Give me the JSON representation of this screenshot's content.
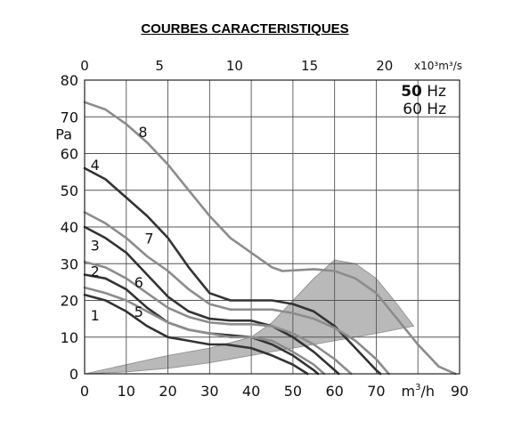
{
  "title": "COURBES CARACTERISTIQUES",
  "chart_data": {
    "type": "line",
    "title": "COURBES CARACTERISTIQUES",
    "ylabel": "Pa",
    "xlabel": "m³/h",
    "x_unit_parts": [
      "m",
      "3",
      "/h"
    ],
    "top_axis_label": "x10³m³/s",
    "top_axis_ticks": [
      "0",
      "5",
      "10",
      "15",
      "20"
    ],
    "top_axis_values": [
      0,
      5,
      10,
      15,
      20
    ],
    "top_axis_max": 25,
    "xlim": [
      0,
      90
    ],
    "ylim": [
      0,
      80
    ],
    "x_ticks": [
      0,
      10,
      20,
      30,
      40,
      50,
      60,
      70,
      80,
      90
    ],
    "y_ticks": [
      0,
      10,
      20,
      30,
      40,
      50,
      60,
      70,
      80
    ],
    "x_tick_labels": [
      "0",
      "10",
      "20",
      "30",
      "40",
      "50",
      "60",
      "70",
      "",
      "90"
    ],
    "y_tick_labels": [
      "0",
      "10",
      "20",
      "30",
      "40",
      "50",
      "60",
      "70",
      "80"
    ],
    "grid": true,
    "legend_lines": [
      "50 Hz",
      "60 Hz"
    ],
    "legend_bold_part": "50",
    "legend_placement": "top-right",
    "colors": {
      "fifty_hz": "#333333",
      "sixty_hz": "#8c8c8c",
      "area": "#b9b9b9",
      "grid": "#555555"
    },
    "series": [
      {
        "name": "1",
        "label_at": [
          2.5,
          16
        ],
        "points": [
          [
            0,
            21.5
          ],
          [
            5,
            20
          ],
          [
            10,
            17
          ],
          [
            15,
            13
          ],
          [
            20,
            10
          ],
          [
            25,
            9
          ],
          [
            30,
            8
          ],
          [
            34,
            8
          ],
          [
            40,
            7
          ],
          [
            45,
            5
          ],
          [
            50,
            2.5
          ],
          [
            53.5,
            0
          ]
        ],
        "freq": "50 Hz"
      },
      {
        "name": "2",
        "label_at": [
          2.5,
          28
        ],
        "points": [
          [
            0,
            27
          ],
          [
            5,
            26
          ],
          [
            10,
            23
          ],
          [
            15,
            18
          ],
          [
            20,
            14
          ],
          [
            25,
            12
          ],
          [
            30,
            11
          ],
          [
            35,
            10.5
          ],
          [
            40,
            10
          ],
          [
            45,
            8
          ],
          [
            50,
            5
          ],
          [
            55,
            1
          ],
          [
            56,
            0
          ]
        ],
        "freq": "50 Hz"
      },
      {
        "name": "3",
        "label_at": [
          2.5,
          35
        ],
        "points": [
          [
            0,
            40
          ],
          [
            5,
            37
          ],
          [
            10,
            33
          ],
          [
            15,
            27
          ],
          [
            20,
            21
          ],
          [
            25,
            17
          ],
          [
            30,
            15
          ],
          [
            35,
            14.5
          ],
          [
            40,
            14.5
          ],
          [
            45,
            13
          ],
          [
            50,
            10
          ],
          [
            55,
            6
          ],
          [
            60,
            1
          ],
          [
            61,
            0
          ]
        ],
        "freq": "50 Hz"
      },
      {
        "name": "4",
        "label_at": [
          2.5,
          57
        ],
        "points": [
          [
            0,
            56
          ],
          [
            5,
            53
          ],
          [
            10,
            48
          ],
          [
            15,
            43
          ],
          [
            20,
            37
          ],
          [
            25,
            29
          ],
          [
            30,
            22
          ],
          [
            35,
            20
          ],
          [
            40,
            20
          ],
          [
            45,
            20
          ],
          [
            50,
            19
          ],
          [
            55,
            17
          ],
          [
            60,
            13
          ],
          [
            65,
            7
          ],
          [
            70,
            1
          ],
          [
            71,
            0
          ]
        ],
        "freq": "50 Hz"
      },
      {
        "name": "5",
        "label_at": [
          13,
          17
        ],
        "points": [
          [
            0,
            23.5
          ],
          [
            5,
            22
          ],
          [
            10,
            20
          ],
          [
            15,
            17
          ],
          [
            20,
            14
          ],
          [
            25,
            12
          ],
          [
            30,
            11
          ],
          [
            35,
            10
          ],
          [
            40,
            10
          ],
          [
            45,
            9
          ],
          [
            50,
            6
          ],
          [
            55,
            2.5
          ],
          [
            57.5,
            0
          ]
        ],
        "freq": "60 Hz"
      },
      {
        "name": "6",
        "label_at": [
          13,
          25
        ],
        "points": [
          [
            0,
            30.5
          ],
          [
            5,
            29
          ],
          [
            10,
            26
          ],
          [
            15,
            22
          ],
          [
            20,
            18
          ],
          [
            25,
            15.5
          ],
          [
            30,
            14
          ],
          [
            35,
            13.5
          ],
          [
            40,
            13.5
          ],
          [
            45,
            13
          ],
          [
            50,
            11
          ],
          [
            55,
            8
          ],
          [
            60,
            4
          ],
          [
            64,
            0
          ]
        ],
        "freq": "60 Hz"
      },
      {
        "name": "7",
        "label_at": [
          15.5,
          37
        ],
        "points": [
          [
            0,
            44
          ],
          [
            5,
            41
          ],
          [
            10,
            37
          ],
          [
            15,
            32
          ],
          [
            20,
            28
          ],
          [
            25,
            23
          ],
          [
            30,
            19
          ],
          [
            35,
            17.5
          ],
          [
            40,
            17.5
          ],
          [
            45,
            17.5
          ],
          [
            50,
            16.5
          ],
          [
            55,
            15
          ],
          [
            60,
            12.5
          ],
          [
            65,
            9
          ],
          [
            70,
            4
          ],
          [
            73,
            0
          ]
        ],
        "freq": "60 Hz"
      },
      {
        "name": "8",
        "label_at": [
          14,
          66
        ],
        "points": [
          [
            0,
            74
          ],
          [
            5,
            72
          ],
          [
            10,
            68
          ],
          [
            15,
            63
          ],
          [
            20,
            57
          ],
          [
            25,
            50
          ],
          [
            30,
            43
          ],
          [
            35,
            37
          ],
          [
            40,
            33
          ],
          [
            45,
            29
          ],
          [
            47.5,
            28
          ],
          [
            55,
            28.5
          ],
          [
            60,
            28
          ],
          [
            65,
            26
          ],
          [
            70,
            22
          ],
          [
            75,
            15
          ],
          [
            80,
            8
          ],
          [
            85,
            2
          ],
          [
            89,
            0
          ]
        ],
        "freq": "60 Hz"
      }
    ],
    "shaded_area": [
      [
        0,
        0
      ],
      [
        10,
        2.5
      ],
      [
        20,
        5
      ],
      [
        30,
        7
      ],
      [
        40,
        10
      ],
      [
        45,
        14
      ],
      [
        50,
        20
      ],
      [
        55,
        26
      ],
      [
        60,
        31
      ],
      [
        65,
        30
      ],
      [
        70,
        26
      ],
      [
        75,
        19
      ],
      [
        79,
        13
      ],
      [
        70,
        11
      ],
      [
        60,
        9
      ],
      [
        50,
        7
      ],
      [
        40,
        5
      ],
      [
        30,
        3
      ],
      [
        20,
        1.5
      ],
      [
        10,
        0.5
      ],
      [
        0,
        0
      ]
    ]
  }
}
